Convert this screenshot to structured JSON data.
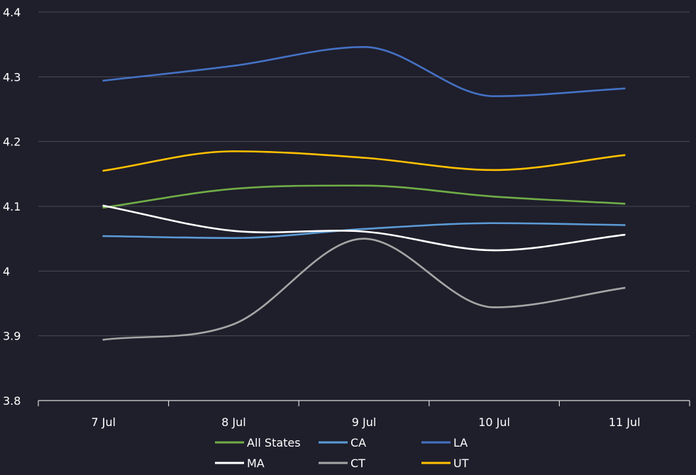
{
  "chart_data": {
    "type": "line",
    "title": "",
    "xlabel": "",
    "ylabel": "",
    "categories": [
      "7 Jul",
      "8 Jul",
      "9 Jul",
      "10 Jul",
      "11 Jul"
    ],
    "ylim": [
      3.8,
      4.4
    ],
    "yticks": [
      3.8,
      3.9,
      4,
      4.1,
      4.2,
      4.3,
      4.4
    ],
    "ytick_labels": [
      "3.8",
      "3.9",
      "4",
      "4.1",
      "4.2",
      "4.3",
      "4.4"
    ],
    "grid": true,
    "legend_position": "bottom",
    "smooth": true,
    "series": [
      {
        "name": "All States",
        "color": "#70ad47",
        "values": [
          4.098,
          4.127,
          4.132,
          4.115,
          4.104
        ]
      },
      {
        "name": "CA",
        "color": "#5b9bd5",
        "values": [
          4.054,
          4.051,
          4.065,
          4.074,
          4.071
        ]
      },
      {
        "name": "LA",
        "color": "#4472c4",
        "values": [
          4.294,
          4.317,
          4.346,
          4.27,
          4.282
        ]
      },
      {
        "name": "MA",
        "color": "#ffffff",
        "values": [
          4.101,
          4.062,
          4.061,
          4.032,
          4.056
        ]
      },
      {
        "name": "CT",
        "color": "#a5a5a5",
        "values": [
          3.894,
          3.918,
          4.05,
          3.944,
          3.974
        ]
      },
      {
        "name": "UT",
        "color": "#ffc000",
        "values": [
          4.155,
          4.185,
          4.175,
          4.156,
          4.179
        ]
      }
    ],
    "colors": {
      "background": "#1f1e2b",
      "gridline": "#4a4a55",
      "axis": "#d9d9d9",
      "text": "#ffffff"
    }
  }
}
